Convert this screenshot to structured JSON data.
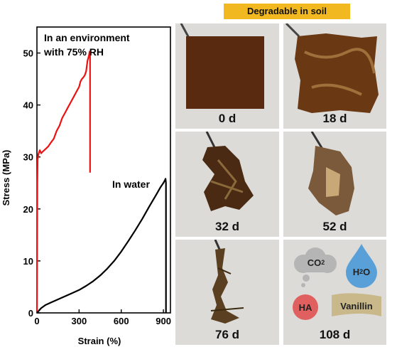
{
  "banner": "Degradable in soil",
  "chart_data": {
    "type": "line",
    "xlabel": "Strain (%)",
    "ylabel": "Stress (MPa)",
    "xlim": [
      0,
      950
    ],
    "ylim": [
      0,
      55
    ],
    "xticks": [
      0,
      300,
      600,
      900
    ],
    "yticks": [
      0,
      10,
      20,
      30,
      40,
      50
    ],
    "annotations": [
      "In an environment with 75% RH",
      "In water"
    ],
    "series": [
      {
        "color": "#ee1111",
        "x": [
          0,
          1,
          2,
          3,
          5,
          10,
          20,
          30,
          40,
          60,
          80,
          100,
          120,
          140,
          160,
          180,
          200,
          220,
          240,
          260,
          280,
          300,
          310,
          320,
          330,
          340,
          350,
          360,
          370,
          375,
          378,
          378,
          378
        ],
        "y": [
          0,
          8,
          17,
          25,
          29.5,
          30.5,
          31.3,
          30.7,
          31.0,
          31.5,
          32.0,
          32.8,
          33.5,
          35.0,
          36.0,
          37.5,
          38.5,
          39.5,
          40.5,
          41.5,
          42.5,
          43.5,
          44.5,
          45.0,
          45.3,
          45.7,
          46.5,
          48.5,
          49.5,
          50.3,
          50.0,
          38.0,
          27.0
        ]
      },
      {
        "color": "#000000",
        "x": [
          0,
          10,
          30,
          60,
          100,
          150,
          200,
          250,
          300,
          350,
          400,
          450,
          500,
          550,
          600,
          650,
          700,
          750,
          800,
          850,
          880,
          900,
          910,
          915,
          918,
          918
        ],
        "y": [
          0,
          0.3,
          0.9,
          1.5,
          2.0,
          2.6,
          3.2,
          3.8,
          4.4,
          5.2,
          6.1,
          7.2,
          8.5,
          10.0,
          11.8,
          13.8,
          15.9,
          18.1,
          20.5,
          22.8,
          24.2,
          25.0,
          25.5,
          25.8,
          25.0,
          0
        ]
      }
    ]
  },
  "tiles": [
    {
      "label": "0 d"
    },
    {
      "label": "18 d"
    },
    {
      "label": "32 d"
    },
    {
      "label": "52 d"
    },
    {
      "label": "76 d"
    },
    {
      "label": "108 d"
    }
  ],
  "products": {
    "co2": {
      "base": "CO",
      "sub": "2"
    },
    "h2o": {
      "pre": "H",
      "sub": "2",
      "post": "O"
    },
    "ha": "HA",
    "vanillin": "Vanillin"
  },
  "colors": {
    "banner": "#f2b81f",
    "cloud": "#b5b5b5",
    "drop": "#5aa0d8",
    "ha": "#e06060",
    "vanillin": "#c8b88a",
    "film": "#5a2a10"
  }
}
